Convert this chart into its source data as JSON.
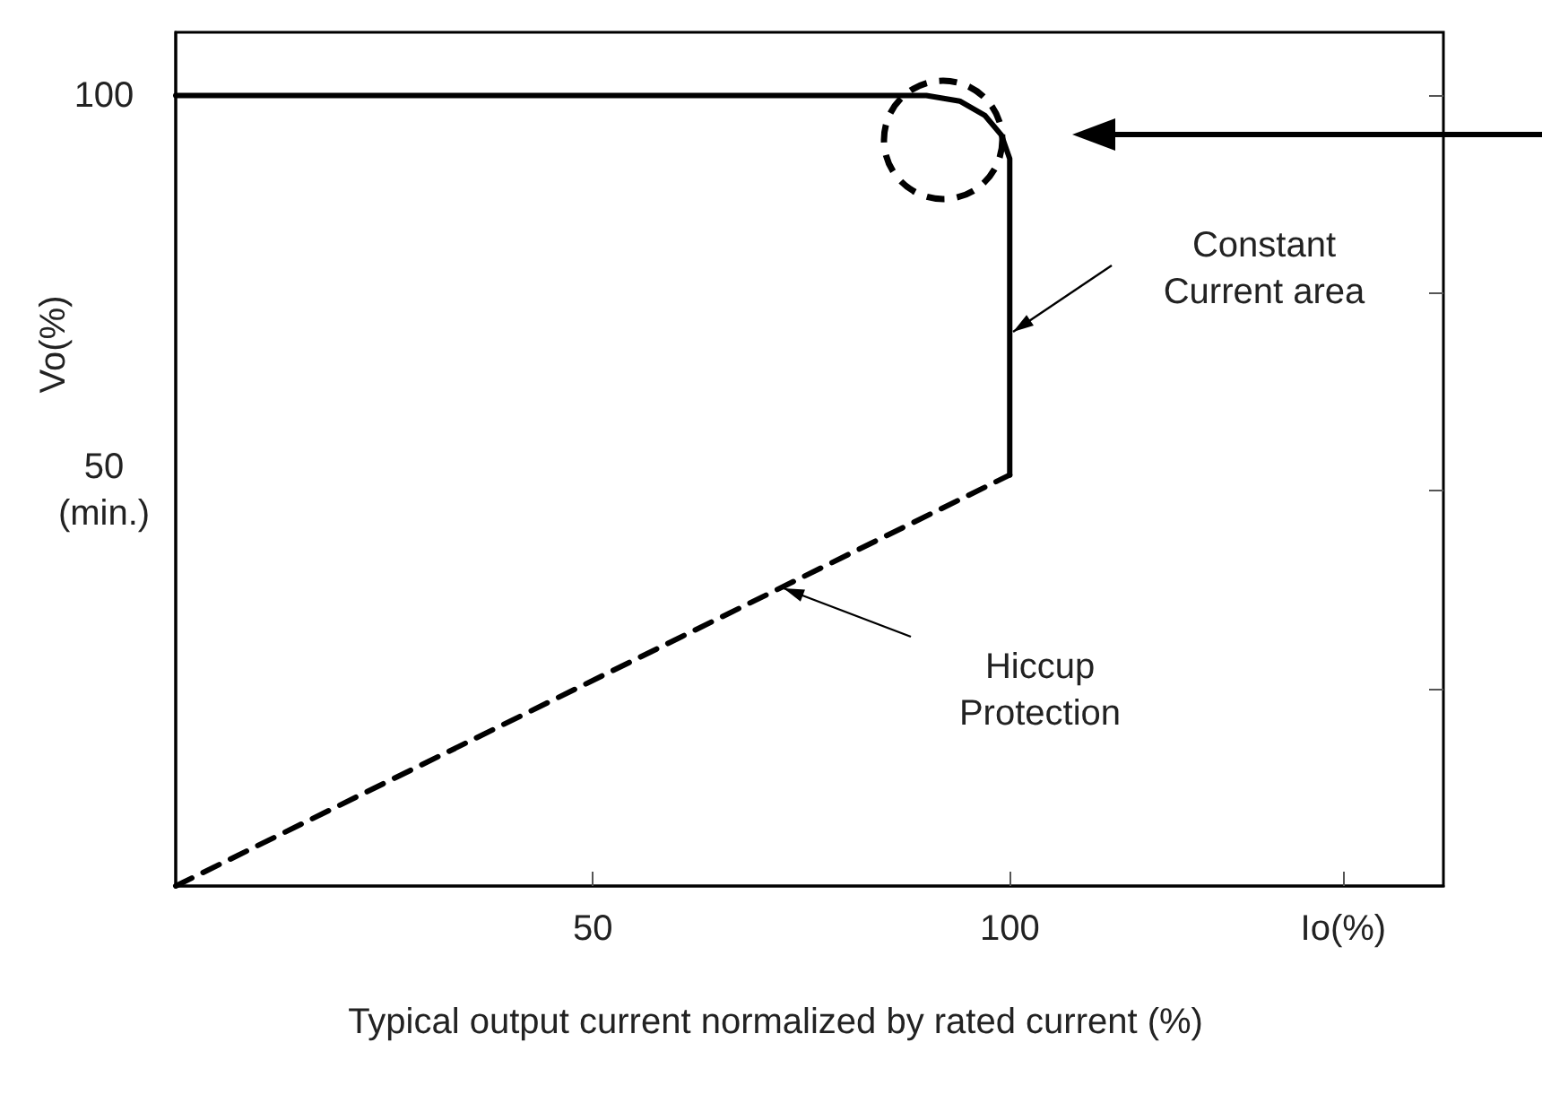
{
  "chart_data": {
    "type": "line",
    "xlabel": "Typical output current normalized by rated current (%)",
    "ylabel": "Vo(%)",
    "xlim": [
      0,
      152
    ],
    "ylim": [
      0,
      108
    ],
    "xticks": [
      50,
      100,
      {
        "value": 140,
        "label": "Io(%)"
      }
    ],
    "yticks": [
      {
        "value": 25,
        "label": null
      },
      {
        "value": 50,
        "label": "50\n(min.)"
      },
      {
        "value": 75,
        "label": null
      },
      {
        "value": 100,
        "label": "100"
      }
    ],
    "grid": false,
    "marker": "none",
    "series": [
      {
        "color": "#000000",
        "line_style": "solid",
        "x": [
          0,
          90,
          94,
          97,
          99,
          100,
          100
        ],
        "values": [
          100,
          100,
          99.3,
          97.5,
          95,
          92,
          52
        ]
      },
      {
        "color": "#000000",
        "line_style": "dashed",
        "x": [
          0,
          100
        ],
        "values": [
          0,
          52
        ]
      }
    ],
    "annotations": [
      "Constant\nCurrent area",
      "Hiccup\nProtection"
    ]
  }
}
